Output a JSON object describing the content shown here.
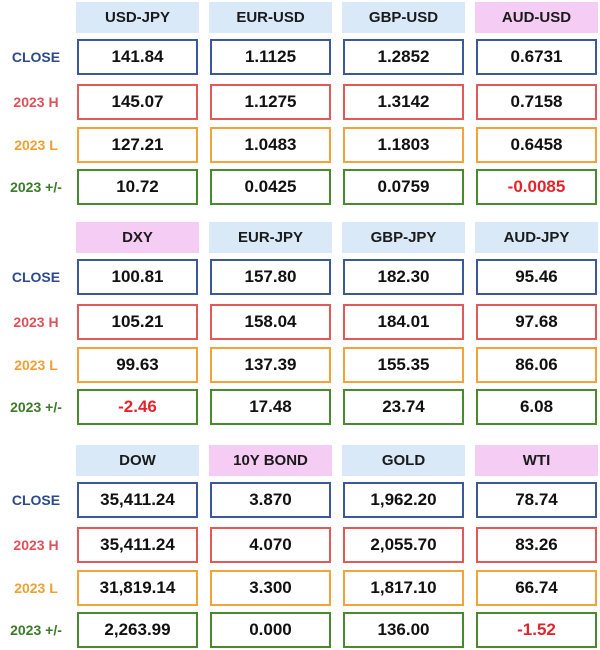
{
  "row_labels": [
    "CLOSE",
    "2023 H",
    "2023 L",
    "2023 +/-"
  ],
  "blocks": [
    {
      "headers": [
        "USD-JPY",
        "EUR-USD",
        "GBP-USD",
        "AUD-USD"
      ],
      "header_styles": [
        "blue",
        "blue",
        "blue",
        "pink"
      ],
      "rows": [
        [
          "141.84",
          "1.1125",
          "1.2852",
          "0.6731"
        ],
        [
          "145.07",
          "1.1275",
          "1.3142",
          "0.7158"
        ],
        [
          "127.21",
          "1.0483",
          "1.1803",
          "0.6458"
        ],
        [
          "10.72",
          "0.0425",
          "0.0759",
          "-0.0085"
        ]
      ]
    },
    {
      "headers": [
        "DXY",
        "EUR-JPY",
        "GBP-JPY",
        "AUD-JPY"
      ],
      "header_styles": [
        "pink",
        "blue",
        "blue",
        "blue"
      ],
      "rows": [
        [
          "100.81",
          "157.80",
          "182.30",
          "95.46"
        ],
        [
          "105.21",
          "158.04",
          "184.01",
          "97.68"
        ],
        [
          "99.63",
          "137.39",
          "155.35",
          "86.06"
        ],
        [
          "-2.46",
          "17.48",
          "23.74",
          "6.08"
        ]
      ]
    },
    {
      "headers": [
        "DOW",
        "10Y BOND",
        "GOLD",
        "WTI"
      ],
      "header_styles": [
        "blue",
        "pink",
        "blue",
        "pink"
      ],
      "rows": [
        [
          "35,411.24",
          "3.870",
          "1,962.20",
          "78.74"
        ],
        [
          "35,411.24",
          "4.070",
          "2,055.70",
          "83.26"
        ],
        [
          "31,819.14",
          "3.300",
          "1,817.10",
          "66.74"
        ],
        [
          "2,263.99",
          "0.000",
          "136.00",
          "-1.52"
        ]
      ]
    }
  ]
}
